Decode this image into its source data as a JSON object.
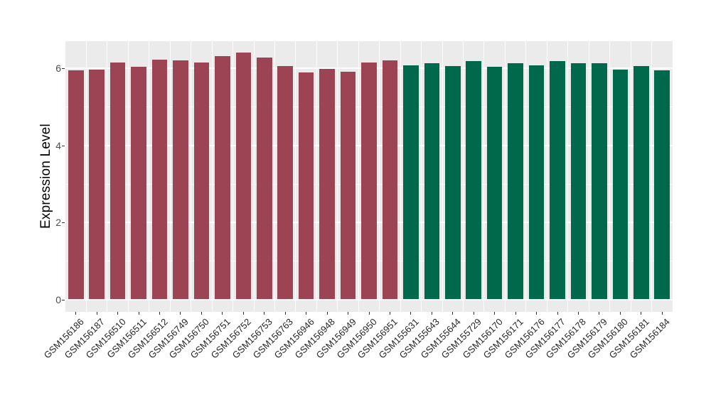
{
  "figure": {
    "background_color": "#FFFFFF",
    "panel_background_color": "#EBEBEB",
    "gridline_color": "#FFFFFF"
  },
  "chart_data": {
    "type": "bar",
    "title": "",
    "xlabel": "",
    "ylabel": "Expression Level",
    "ylim": [
      0,
      6.7
    ],
    "yticks": [
      0,
      2,
      4,
      6
    ],
    "yticks_minor": [
      1,
      3,
      5
    ],
    "grid": true,
    "legend_position": "none",
    "x_tick_angle_deg": 45,
    "categories": [
      "GSM156186",
      "GSM156187",
      "GSM156510",
      "GSM156511",
      "GSM156512",
      "GSM156749",
      "GSM156750",
      "GSM156751",
      "GSM156752",
      "GSM156753",
      "GSM156763",
      "GSM156946",
      "GSM156948",
      "GSM156949",
      "GSM156950",
      "GSM156951",
      "GSM155631",
      "GSM155643",
      "GSM155644",
      "GSM155729",
      "GSM156170",
      "GSM156171",
      "GSM156176",
      "GSM156177",
      "GSM156178",
      "GSM156179",
      "GSM156180",
      "GSM156181",
      "GSM156184"
    ],
    "values": [
      5.95,
      5.97,
      6.15,
      6.04,
      6.22,
      6.21,
      6.15,
      6.32,
      6.41,
      6.28,
      6.05,
      5.89,
      5.99,
      5.91,
      6.14,
      6.21,
      6.08,
      6.13,
      6.05,
      6.18,
      6.04,
      6.13,
      6.07,
      6.19,
      6.12,
      6.13,
      5.96,
      6.05,
      5.94
    ],
    "bar_groups": [
      {
        "color": "#9C4453",
        "count": 16,
        "first_category": "GSM156186",
        "last_category": "GSM156951"
      },
      {
        "color": "#00684B",
        "count": 13,
        "first_category": "GSM155631",
        "last_category": "GSM156184"
      }
    ]
  }
}
